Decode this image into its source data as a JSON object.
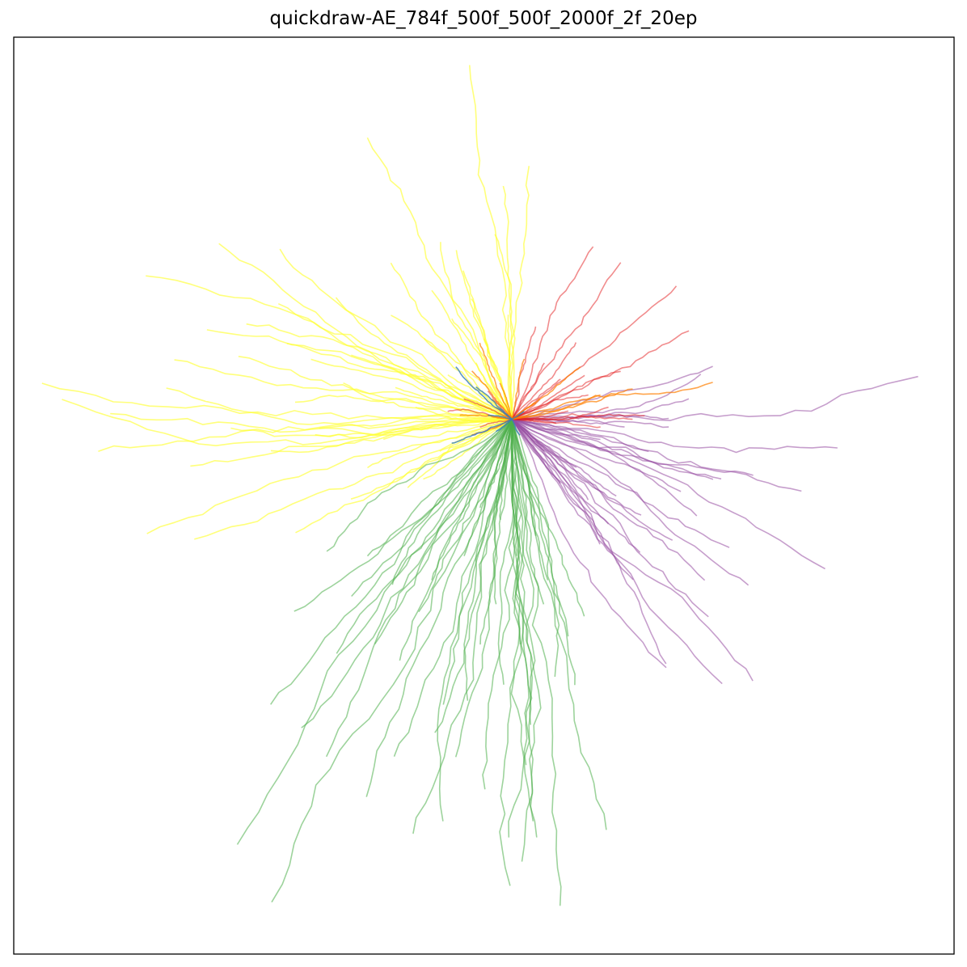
{
  "chart_data": {
    "type": "line",
    "title": "quickdraw-AE_784f_500f_500f_2000f_2f_20ep",
    "xlabel": "",
    "ylabel": "",
    "xlim": [
      -620,
      550
    ],
    "ylim": [
      -665,
      475
    ],
    "grid": false,
    "axis_ticks": false,
    "legend": "none",
    "origin": [
      0,
      0
    ],
    "series": [
      {
        "color": "#ffff33",
        "alpha": 0.65,
        "endpoints": [
          [
            -585,
            43
          ],
          [
            -515,
            -38
          ],
          [
            -400,
            -60
          ],
          [
            -455,
            -140
          ],
          [
            -395,
            -150
          ],
          [
            -270,
            -140
          ],
          [
            -365,
            218
          ],
          [
            -455,
            180
          ],
          [
            -290,
            210
          ],
          [
            -250,
            75
          ],
          [
            -340,
            80
          ],
          [
            -120,
            15
          ],
          [
            -210,
            45
          ],
          [
            -270,
            20
          ],
          [
            -180,
            -60
          ],
          [
            -200,
            -100
          ],
          [
            -130,
            -85
          ],
          [
            -90,
            -40
          ],
          [
            -60,
            185
          ],
          [
            -75,
            125
          ],
          [
            -45,
            70
          ],
          [
            -150,
            130
          ],
          [
            -220,
            150
          ],
          [
            -330,
            120
          ],
          [
            -500,
            5
          ],
          [
            -430,
            40
          ],
          [
            -300,
            -40
          ],
          [
            -240,
            -10
          ],
          [
            -160,
            -25
          ],
          [
            -110,
            -75
          ],
          [
            -180,
            350
          ],
          [
            -150,
            195
          ],
          [
            -100,
            160
          ],
          [
            -70,
            210
          ],
          [
            -110,
            100
          ],
          [
            -50,
            150
          ],
          [
            -55,
            440
          ],
          [
            -10,
            290
          ],
          [
            -20,
            230
          ],
          [
            20,
            315
          ],
          [
            -5,
            130
          ],
          [
            -35,
            100
          ],
          [
            -90,
            220
          ],
          [
            -290,
            145
          ],
          [
            -380,
            110
          ],
          [
            -560,
            25
          ],
          [
            -245,
            -20
          ],
          [
            -145,
            40
          ],
          [
            -80,
            55
          ],
          [
            -40,
            20
          ],
          [
            -350,
            -10
          ],
          [
            -420,
            75
          ],
          [
            -280,
            95
          ],
          [
            -200,
            80
          ]
        ]
      },
      {
        "color": "#4daf4a",
        "alpha": 0.55,
        "endpoints": [
          [
            -300,
            -355
          ],
          [
            -270,
            -240
          ],
          [
            -230,
            -165
          ],
          [
            -180,
            -170
          ],
          [
            -150,
            -205
          ],
          [
            -140,
            -300
          ],
          [
            -220,
            -290
          ],
          [
            -170,
            -280
          ],
          [
            -340,
            -530
          ],
          [
            -300,
            -600
          ],
          [
            -180,
            -470
          ],
          [
            -125,
            -515
          ],
          [
            -95,
            -390
          ],
          [
            -85,
            -355
          ],
          [
            -55,
            -350
          ],
          [
            -40,
            -280
          ],
          [
            -10,
            -330
          ],
          [
            -5,
            -580
          ],
          [
            10,
            -550
          ],
          [
            25,
            -500
          ],
          [
            30,
            -520
          ],
          [
            60,
            -605
          ],
          [
            90,
            -245
          ],
          [
            55,
            -320
          ],
          [
            80,
            -330
          ],
          [
            120,
            -510
          ],
          [
            25,
            -380
          ],
          [
            -20,
            -230
          ],
          [
            -100,
            -200
          ],
          [
            -60,
            -170
          ],
          [
            -70,
            -420
          ],
          [
            -145,
            -420
          ],
          [
            -35,
            -460
          ],
          [
            40,
            -230
          ],
          [
            10,
            -280
          ],
          [
            70,
            -270
          ],
          [
            -115,
            -240
          ],
          [
            -200,
            -220
          ],
          [
            -260,
            -385
          ],
          [
            -230,
            -420
          ],
          [
            5,
            -170
          ],
          [
            -15,
            -125
          ],
          [
            30,
            -145
          ],
          [
            -40,
            -110
          ],
          [
            45,
            -200
          ],
          [
            -5,
            -520
          ],
          [
            15,
            -430
          ],
          [
            -85,
            -500
          ]
        ]
      },
      {
        "color": "#984ea3",
        "alpha": 0.55,
        "endpoints": [
          [
            505,
            55
          ],
          [
            405,
            -35
          ],
          [
            360,
            -90
          ],
          [
            300,
            -70
          ],
          [
            250,
            -75
          ],
          [
            195,
            -10
          ],
          [
            390,
            -185
          ],
          [
            295,
            -205
          ],
          [
            245,
            -245
          ],
          [
            300,
            -325
          ],
          [
            260,
            -330
          ],
          [
            190,
            -310
          ],
          [
            190,
            -305
          ],
          [
            160,
            -165
          ],
          [
            120,
            -130
          ],
          [
            110,
            -155
          ],
          [
            150,
            -200
          ],
          [
            260,
            -75
          ],
          [
            250,
            65
          ],
          [
            235,
            55
          ],
          [
            220,
            25
          ],
          [
            195,
            0
          ],
          [
            170,
            -40
          ],
          [
            130,
            -95
          ],
          [
            160,
            -120
          ],
          [
            200,
            -150
          ],
          [
            230,
            -120
          ],
          [
            270,
            -160
          ],
          [
            240,
            -200
          ],
          [
            210,
            -90
          ],
          [
            80,
            -60
          ],
          [
            110,
            -25
          ],
          [
            140,
            -10
          ],
          [
            95,
            -100
          ],
          [
            60,
            -80
          ],
          [
            40,
            -40
          ]
        ]
      },
      {
        "color": "#e41a1c",
        "alpha": 0.5,
        "endpoints": [
          [
            100,
            215
          ],
          [
            135,
            195
          ],
          [
            205,
            165
          ],
          [
            220,
            110
          ],
          [
            135,
            60
          ],
          [
            95,
            30
          ],
          [
            60,
            50
          ],
          [
            80,
            95
          ],
          [
            40,
            70
          ],
          [
            120,
            15
          ],
          [
            150,
            0
          ],
          [
            70,
            10
          ],
          [
            -20,
            15
          ],
          [
            -60,
            25
          ],
          [
            -30,
            35
          ],
          [
            -50,
            -20
          ],
          [
            35,
            25
          ],
          [
            55,
            -5
          ],
          [
            -80,
            10
          ],
          [
            -40,
            -10
          ],
          [
            90,
            55
          ],
          [
            30,
            115
          ],
          [
            165,
            5
          ],
          [
            110,
            -10
          ]
        ]
      },
      {
        "color": "#ff7f00",
        "alpha": 0.7,
        "endpoints": [
          [
            250,
            45
          ],
          [
            150,
            38
          ],
          [
            85,
            65
          ],
          [
            -40,
            95
          ],
          [
            -50,
            60
          ],
          [
            30,
            20
          ],
          [
            -25,
            25
          ],
          [
            -65,
            5
          ],
          [
            -15,
            45
          ],
          [
            15,
            75
          ],
          [
            110,
            30
          ]
        ]
      },
      {
        "color": "#377eb8",
        "alpha": 0.8,
        "endpoints": [
          [
            -70,
            65
          ],
          [
            -45,
            40
          ],
          [
            -75,
            -30
          ],
          [
            -20,
            -15
          ],
          [
            15,
            10
          ],
          [
            -30,
            5
          ],
          [
            10,
            -20
          ]
        ]
      }
    ]
  }
}
